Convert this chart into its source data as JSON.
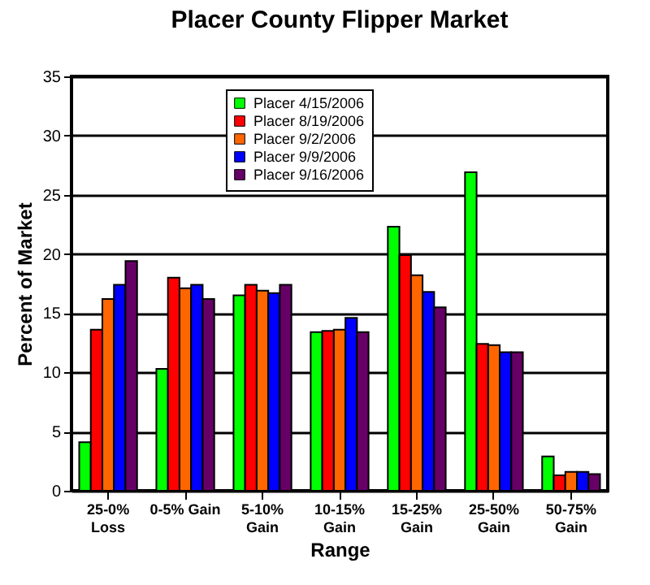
{
  "chart_data": {
    "type": "bar",
    "title": "Placer County Flipper Market",
    "xlabel": "Range",
    "ylabel": "Percent of Market",
    "categories": [
      "25-0% Loss",
      "0-5% Gain",
      "5-10% Gain",
      "10-15% Gain",
      "15-25% Gain",
      "25-50% Gain",
      "50-75% Gain"
    ],
    "series": [
      {
        "name": "Placer 4/15/2006",
        "color": "#00ff00",
        "values": [
          4.1,
          10.3,
          16.5,
          13.4,
          22.3,
          26.9,
          2.9
        ]
      },
      {
        "name": "Placer 8/19/2006",
        "color": "#ff0000",
        "values": [
          13.6,
          18.0,
          17.4,
          13.5,
          19.9,
          12.4,
          1.3
        ]
      },
      {
        "name": "Placer 9/2/2006",
        "color": "#ff6600",
        "values": [
          16.2,
          17.1,
          16.9,
          13.6,
          18.2,
          12.3,
          1.6
        ]
      },
      {
        "name": "Placer 9/9/2006",
        "color": "#0000ff",
        "values": [
          17.4,
          17.4,
          16.7,
          14.6,
          16.8,
          11.7,
          1.6
        ]
      },
      {
        "name": "Placer 9/16/2006",
        "color": "#660066",
        "values": [
          19.4,
          16.2,
          17.4,
          13.4,
          15.5,
          11.7,
          1.4
        ]
      }
    ],
    "ylim": [
      0,
      35
    ],
    "yticks": [
      0,
      5,
      10,
      15,
      20,
      25,
      30,
      35
    ],
    "grid": "y",
    "legend": "top"
  }
}
